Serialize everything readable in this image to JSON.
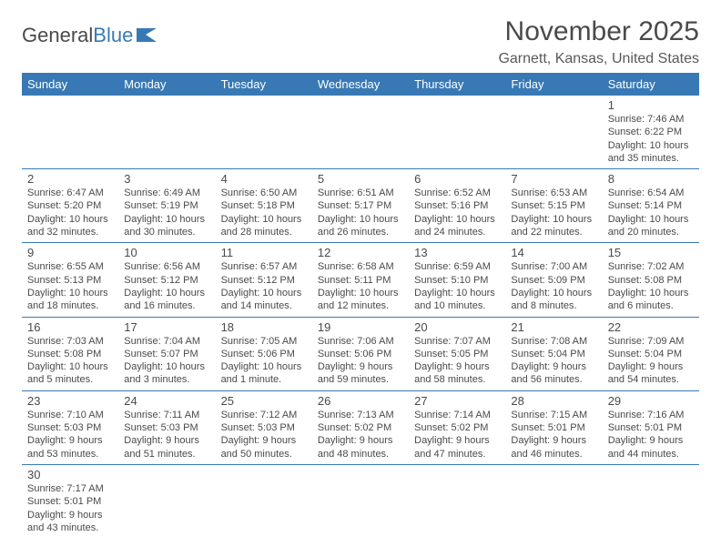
{
  "brand": {
    "part1": "General",
    "part2": "Blue"
  },
  "colors": {
    "header_bg": "#3879b5",
    "header_text": "#ffffff",
    "body_text": "#4a4a4a",
    "border": "#3879b5",
    "background": "#ffffff"
  },
  "title": "November 2025",
  "location": "Garnett, Kansas, United States",
  "weekdays": [
    "Sunday",
    "Monday",
    "Tuesday",
    "Wednesday",
    "Thursday",
    "Friday",
    "Saturday"
  ],
  "days": {
    "1": {
      "sunrise": "Sunrise: 7:46 AM",
      "sunset": "Sunset: 6:22 PM",
      "daylight": "Daylight: 10 hours and 35 minutes."
    },
    "2": {
      "sunrise": "Sunrise: 6:47 AM",
      "sunset": "Sunset: 5:20 PM",
      "daylight": "Daylight: 10 hours and 32 minutes."
    },
    "3": {
      "sunrise": "Sunrise: 6:49 AM",
      "sunset": "Sunset: 5:19 PM",
      "daylight": "Daylight: 10 hours and 30 minutes."
    },
    "4": {
      "sunrise": "Sunrise: 6:50 AM",
      "sunset": "Sunset: 5:18 PM",
      "daylight": "Daylight: 10 hours and 28 minutes."
    },
    "5": {
      "sunrise": "Sunrise: 6:51 AM",
      "sunset": "Sunset: 5:17 PM",
      "daylight": "Daylight: 10 hours and 26 minutes."
    },
    "6": {
      "sunrise": "Sunrise: 6:52 AM",
      "sunset": "Sunset: 5:16 PM",
      "daylight": "Daylight: 10 hours and 24 minutes."
    },
    "7": {
      "sunrise": "Sunrise: 6:53 AM",
      "sunset": "Sunset: 5:15 PM",
      "daylight": "Daylight: 10 hours and 22 minutes."
    },
    "8": {
      "sunrise": "Sunrise: 6:54 AM",
      "sunset": "Sunset: 5:14 PM",
      "daylight": "Daylight: 10 hours and 20 minutes."
    },
    "9": {
      "sunrise": "Sunrise: 6:55 AM",
      "sunset": "Sunset: 5:13 PM",
      "daylight": "Daylight: 10 hours and 18 minutes."
    },
    "10": {
      "sunrise": "Sunrise: 6:56 AM",
      "sunset": "Sunset: 5:12 PM",
      "daylight": "Daylight: 10 hours and 16 minutes."
    },
    "11": {
      "sunrise": "Sunrise: 6:57 AM",
      "sunset": "Sunset: 5:12 PM",
      "daylight": "Daylight: 10 hours and 14 minutes."
    },
    "12": {
      "sunrise": "Sunrise: 6:58 AM",
      "sunset": "Sunset: 5:11 PM",
      "daylight": "Daylight: 10 hours and 12 minutes."
    },
    "13": {
      "sunrise": "Sunrise: 6:59 AM",
      "sunset": "Sunset: 5:10 PM",
      "daylight": "Daylight: 10 hours and 10 minutes."
    },
    "14": {
      "sunrise": "Sunrise: 7:00 AM",
      "sunset": "Sunset: 5:09 PM",
      "daylight": "Daylight: 10 hours and 8 minutes."
    },
    "15": {
      "sunrise": "Sunrise: 7:02 AM",
      "sunset": "Sunset: 5:08 PM",
      "daylight": "Daylight: 10 hours and 6 minutes."
    },
    "16": {
      "sunrise": "Sunrise: 7:03 AM",
      "sunset": "Sunset: 5:08 PM",
      "daylight": "Daylight: 10 hours and 5 minutes."
    },
    "17": {
      "sunrise": "Sunrise: 7:04 AM",
      "sunset": "Sunset: 5:07 PM",
      "daylight": "Daylight: 10 hours and 3 minutes."
    },
    "18": {
      "sunrise": "Sunrise: 7:05 AM",
      "sunset": "Sunset: 5:06 PM",
      "daylight": "Daylight: 10 hours and 1 minute."
    },
    "19": {
      "sunrise": "Sunrise: 7:06 AM",
      "sunset": "Sunset: 5:06 PM",
      "daylight": "Daylight: 9 hours and 59 minutes."
    },
    "20": {
      "sunrise": "Sunrise: 7:07 AM",
      "sunset": "Sunset: 5:05 PM",
      "daylight": "Daylight: 9 hours and 58 minutes."
    },
    "21": {
      "sunrise": "Sunrise: 7:08 AM",
      "sunset": "Sunset: 5:04 PM",
      "daylight": "Daylight: 9 hours and 56 minutes."
    },
    "22": {
      "sunrise": "Sunrise: 7:09 AM",
      "sunset": "Sunset: 5:04 PM",
      "daylight": "Daylight: 9 hours and 54 minutes."
    },
    "23": {
      "sunrise": "Sunrise: 7:10 AM",
      "sunset": "Sunset: 5:03 PM",
      "daylight": "Daylight: 9 hours and 53 minutes."
    },
    "24": {
      "sunrise": "Sunrise: 7:11 AM",
      "sunset": "Sunset: 5:03 PM",
      "daylight": "Daylight: 9 hours and 51 minutes."
    },
    "25": {
      "sunrise": "Sunrise: 7:12 AM",
      "sunset": "Sunset: 5:03 PM",
      "daylight": "Daylight: 9 hours and 50 minutes."
    },
    "26": {
      "sunrise": "Sunrise: 7:13 AM",
      "sunset": "Sunset: 5:02 PM",
      "daylight": "Daylight: 9 hours and 48 minutes."
    },
    "27": {
      "sunrise": "Sunrise: 7:14 AM",
      "sunset": "Sunset: 5:02 PM",
      "daylight": "Daylight: 9 hours and 47 minutes."
    },
    "28": {
      "sunrise": "Sunrise: 7:15 AM",
      "sunset": "Sunset: 5:01 PM",
      "daylight": "Daylight: 9 hours and 46 minutes."
    },
    "29": {
      "sunrise": "Sunrise: 7:16 AM",
      "sunset": "Sunset: 5:01 PM",
      "daylight": "Daylight: 9 hours and 44 minutes."
    },
    "30": {
      "sunrise": "Sunrise: 7:17 AM",
      "sunset": "Sunset: 5:01 PM",
      "daylight": "Daylight: 9 hours and 43 minutes."
    }
  },
  "layout": [
    [
      null,
      null,
      null,
      null,
      null,
      null,
      "1"
    ],
    [
      "2",
      "3",
      "4",
      "5",
      "6",
      "7",
      "8"
    ],
    [
      "9",
      "10",
      "11",
      "12",
      "13",
      "14",
      "15"
    ],
    [
      "16",
      "17",
      "18",
      "19",
      "20",
      "21",
      "22"
    ],
    [
      "23",
      "24",
      "25",
      "26",
      "27",
      "28",
      "29"
    ],
    [
      "30",
      null,
      null,
      null,
      null,
      null,
      null
    ]
  ]
}
